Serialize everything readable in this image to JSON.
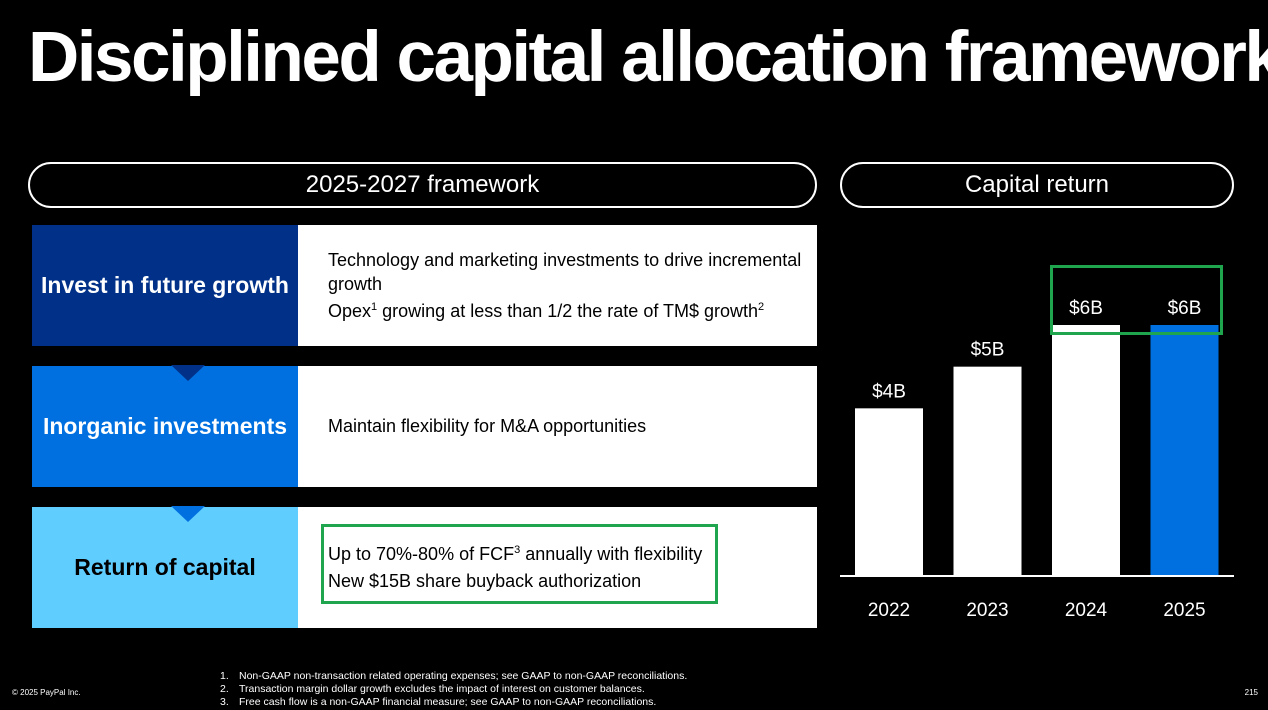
{
  "title": "Disciplined capital allocation framework",
  "framework_header": "2025-2027 framework",
  "capital_return_header": "Capital return",
  "rows": [
    {
      "category": "Invest in future growth",
      "lines": [
        {
          "text": "Technology and marketing investments to drive incremental growth"
        },
        {
          "pre": "Opex",
          "sup1": "1",
          "mid": " growing at less than 1/2 the rate of TM$ growth",
          "sup2": "2"
        }
      ]
    },
    {
      "category": "Inorganic investments",
      "lines": [
        {
          "text": "Maintain flexibility for M&A opportunities"
        }
      ]
    },
    {
      "category": "Return of capital",
      "lines": [
        {
          "pre": "Up to 70%-80% of FCF",
          "sup1": "3",
          "mid": " annually with flexibility"
        },
        {
          "text": "New $15B share buyback authorization"
        }
      ]
    }
  ],
  "chart_data": {
    "type": "bar",
    "title": "Capital return",
    "categories": [
      "2022",
      "2023",
      "2024",
      "2025"
    ],
    "values": [
      4,
      5,
      6,
      6
    ],
    "data_labels": [
      "$4B",
      "$5B",
      "$6B",
      "$6B"
    ],
    "ylim": [
      0,
      6
    ],
    "bar_colors": [
      "#ffffff",
      "#ffffff",
      "#ffffff",
      "#0070e0"
    ],
    "highlighted_categories": [
      "2024",
      "2025"
    ],
    "highlight_color": "#1ea54e",
    "grid": false
  },
  "footnotes": [
    {
      "num": "1.",
      "text": "Non-GAAP non-transaction related operating expenses; see GAAP to non-GAAP reconciliations."
    },
    {
      "num": "2.",
      "text": "Transaction margin dollar growth excludes the impact of interest on customer balances."
    },
    {
      "num": "3.",
      "text": "Free cash flow is a non-GAAP financial measure; see GAAP to non-GAAP reconciliations."
    }
  ],
  "copyright": "© 2025 PayPal Inc.",
  "page_number": "215"
}
